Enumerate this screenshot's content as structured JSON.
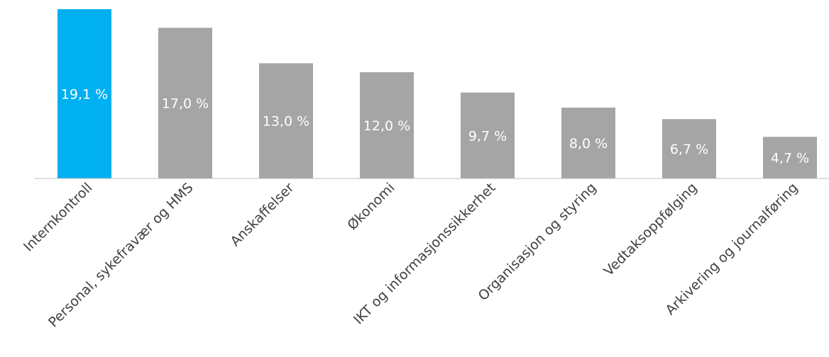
{
  "chart_data": {
    "type": "bar",
    "categories": [
      "Internkontroll",
      "Personal, sykefravær og HMS",
      "Anskaffelser",
      "Økonomi",
      "IKT og informasjonssikkerhet",
      "Organisasjon og styring",
      "Vedtaksoppfølging",
      "Arkivering og journalføring"
    ],
    "values": [
      19.1,
      17.0,
      13.0,
      12.0,
      9.7,
      8.0,
      6.7,
      4.7
    ],
    "data_labels": [
      "19,1 %",
      "17,0 %",
      "13,0 %",
      "12,0 %",
      "9,7 %",
      "8,0 %",
      "6,7 %",
      "4,7 %"
    ],
    "title": "",
    "xlabel": "",
    "ylabel": "",
    "ylim": [
      0,
      19.1
    ],
    "grid": false,
    "legend": "none",
    "colors": {
      "highlight": "#00b0f0",
      "default": "#a5a5a5",
      "label_text": "#ffffff",
      "category_text": "#404040"
    }
  }
}
